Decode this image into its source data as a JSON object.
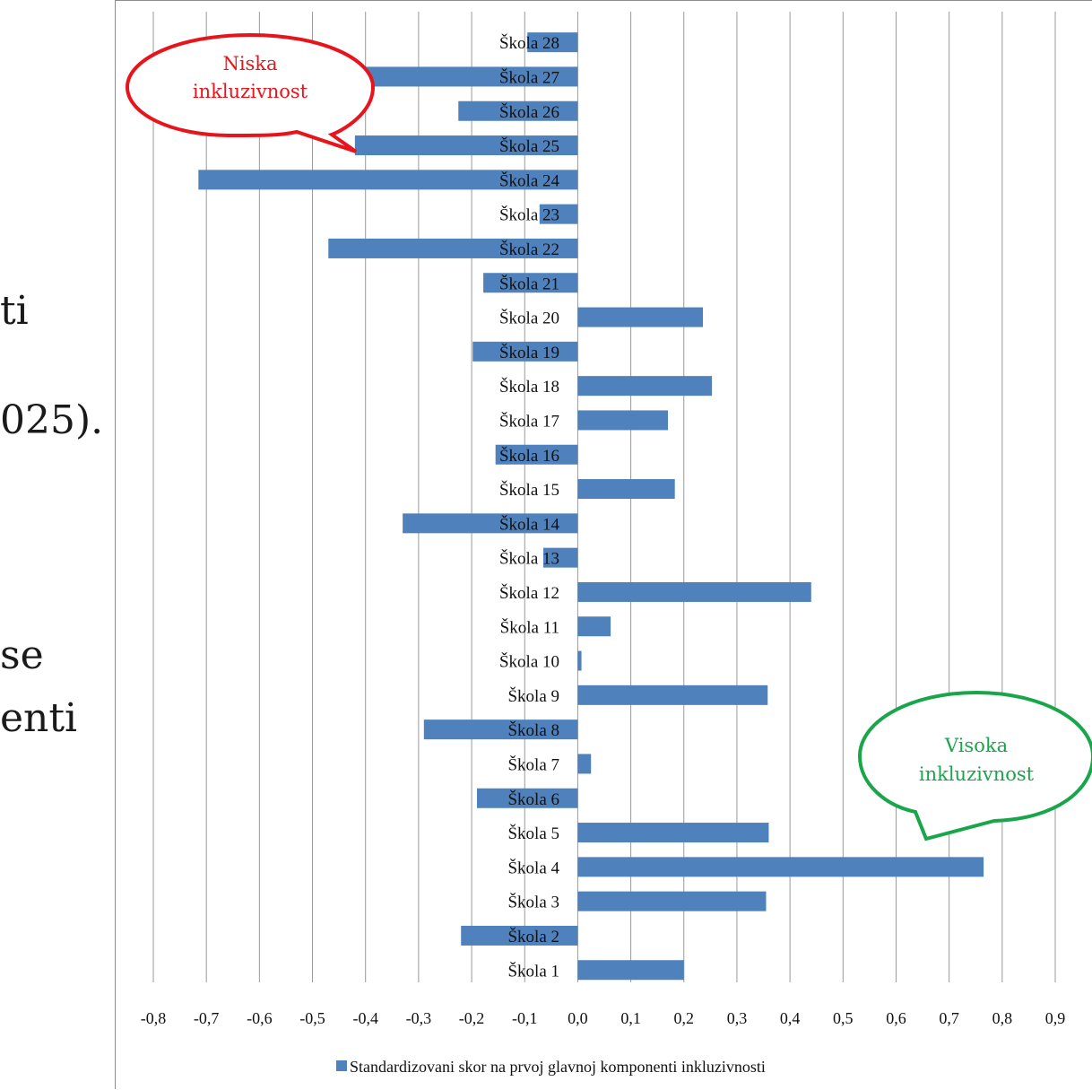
{
  "background_text": {
    "line1": "ti",
    "line2": "025).",
    "line3": "se",
    "line4": "enti"
  },
  "chart_data": {
    "type": "bar",
    "orientation": "horizontal",
    "categories": [
      "Škola 1",
      "Škola 2",
      "Škola 3",
      "Škola 4",
      "Škola 5",
      "Škola 6",
      "Škola 7",
      "Škola 8",
      "Škola 9",
      "Škola 10",
      "Škola 11",
      "Škola 12",
      "Škola 13",
      "Škola 14",
      "Škola 15",
      "Škola 16",
      "Škola 17",
      "Škola 18",
      "Škola 19",
      "Škola 20",
      "Škola 21",
      "Škola 22",
      "Škola 23",
      "Škola 24",
      "Škola 25",
      "Škola 26",
      "Škola 27",
      "Škola 28"
    ],
    "series": [
      {
        "name": "Standardizovani skor na prvoj glavnoj komponenti inkluzivnosti",
        "values": [
          0.2,
          -0.22,
          0.355,
          0.765,
          0.36,
          -0.19,
          0.025,
          -0.29,
          0.358,
          0.007,
          0.062,
          0.44,
          -0.065,
          -0.33,
          0.183,
          -0.155,
          0.17,
          0.253,
          -0.198,
          0.236,
          -0.178,
          -0.47,
          -0.072,
          -0.715,
          -0.42,
          -0.225,
          -0.485,
          -0.095
        ],
        "color": "#4f81bd"
      }
    ],
    "xlim": [
      -0.8,
      0.9
    ],
    "xticks": [
      "-0,8",
      "-0,7",
      "-0,6",
      "-0,5",
      "-0,4",
      "-0,3",
      "-0,2",
      "-0,1",
      "0,0",
      "0,1",
      "0,2",
      "0,3",
      "0,4",
      "0,5",
      "0,6",
      "0,7",
      "0,8",
      "0,9"
    ],
    "grid": "vertical",
    "legend_position": "bottom",
    "legend_label": "Standardizovani skor na prvoj glavnoj komponenti inkluzivnosti",
    "annotations": {
      "low": {
        "line1": "Niska",
        "line2": "inkluzivnost",
        "color": "#e8141b"
      },
      "high": {
        "line1": "Visoka",
        "line2": "inkluzivnost",
        "color": "#19a64a"
      }
    }
  }
}
